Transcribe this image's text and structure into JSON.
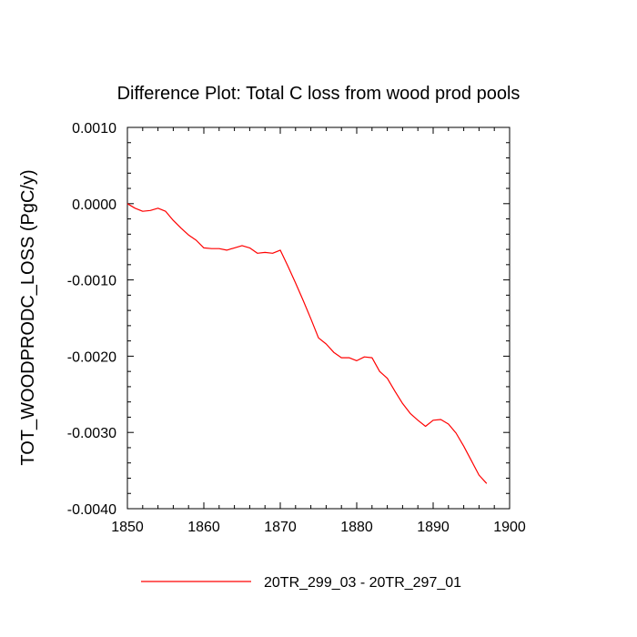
{
  "chart_data": {
    "type": "line",
    "title": "Difference Plot: Total C loss from wood prod pools",
    "xlabel": "",
    "ylabel": "TOT_WOODPRODC_LOSS  (PgC/y)",
    "xlim": [
      1850,
      1900
    ],
    "ylim": [
      -0.004,
      0.001
    ],
    "xticks": [
      1850,
      1860,
      1870,
      1880,
      1890,
      1900
    ],
    "xtick_labels": [
      "1850",
      "1860",
      "1870",
      "1880",
      "1890",
      "1900"
    ],
    "yticks": [
      0.001,
      0.0,
      -0.001,
      -0.002,
      -0.003,
      -0.004
    ],
    "ytick_labels": [
      "0.0010",
      "0.0000",
      "-0.0010",
      "-0.0020",
      "-0.0030",
      "-0.0040"
    ],
    "grid": false,
    "legend_position": "bottom-center",
    "series": [
      {
        "name": "20TR_299_03 - 20TR_297_01",
        "color": "#ff0000",
        "x": [
          1850,
          1851,
          1852,
          1853,
          1854,
          1855,
          1856,
          1857,
          1858,
          1859,
          1860,
          1861,
          1862,
          1863,
          1864,
          1865,
          1866,
          1867,
          1868,
          1869,
          1870,
          1871,
          1872,
          1873,
          1874,
          1875,
          1876,
          1877,
          1878,
          1879,
          1880,
          1881,
          1882,
          1883,
          1884,
          1885,
          1886,
          1887,
          1888,
          1889,
          1890,
          1891,
          1892,
          1893,
          1894,
          1895,
          1896,
          1897
        ],
        "y": [
          0.0,
          -6e-05,
          -0.0001,
          -9e-05,
          -6e-05,
          -0.0001,
          -0.00022,
          -0.00032,
          -0.00041,
          -0.00048,
          -0.00058,
          -0.00059,
          -0.00059,
          -0.00061,
          -0.00058,
          -0.00055,
          -0.00058,
          -0.00065,
          -0.00064,
          -0.00065,
          -0.00061,
          -0.00082,
          -0.00104,
          -0.00127,
          -0.00151,
          -0.00176,
          -0.00184,
          -0.00195,
          -0.00202,
          -0.00202,
          -0.00206,
          -0.00201,
          -0.00202,
          -0.0022,
          -0.00229,
          -0.00246,
          -0.00262,
          -0.00275,
          -0.00284,
          -0.00292,
          -0.00284,
          -0.00283,
          -0.00289,
          -0.00301,
          -0.00318,
          -0.00337,
          -0.00356,
          -0.00367
        ]
      }
    ]
  }
}
